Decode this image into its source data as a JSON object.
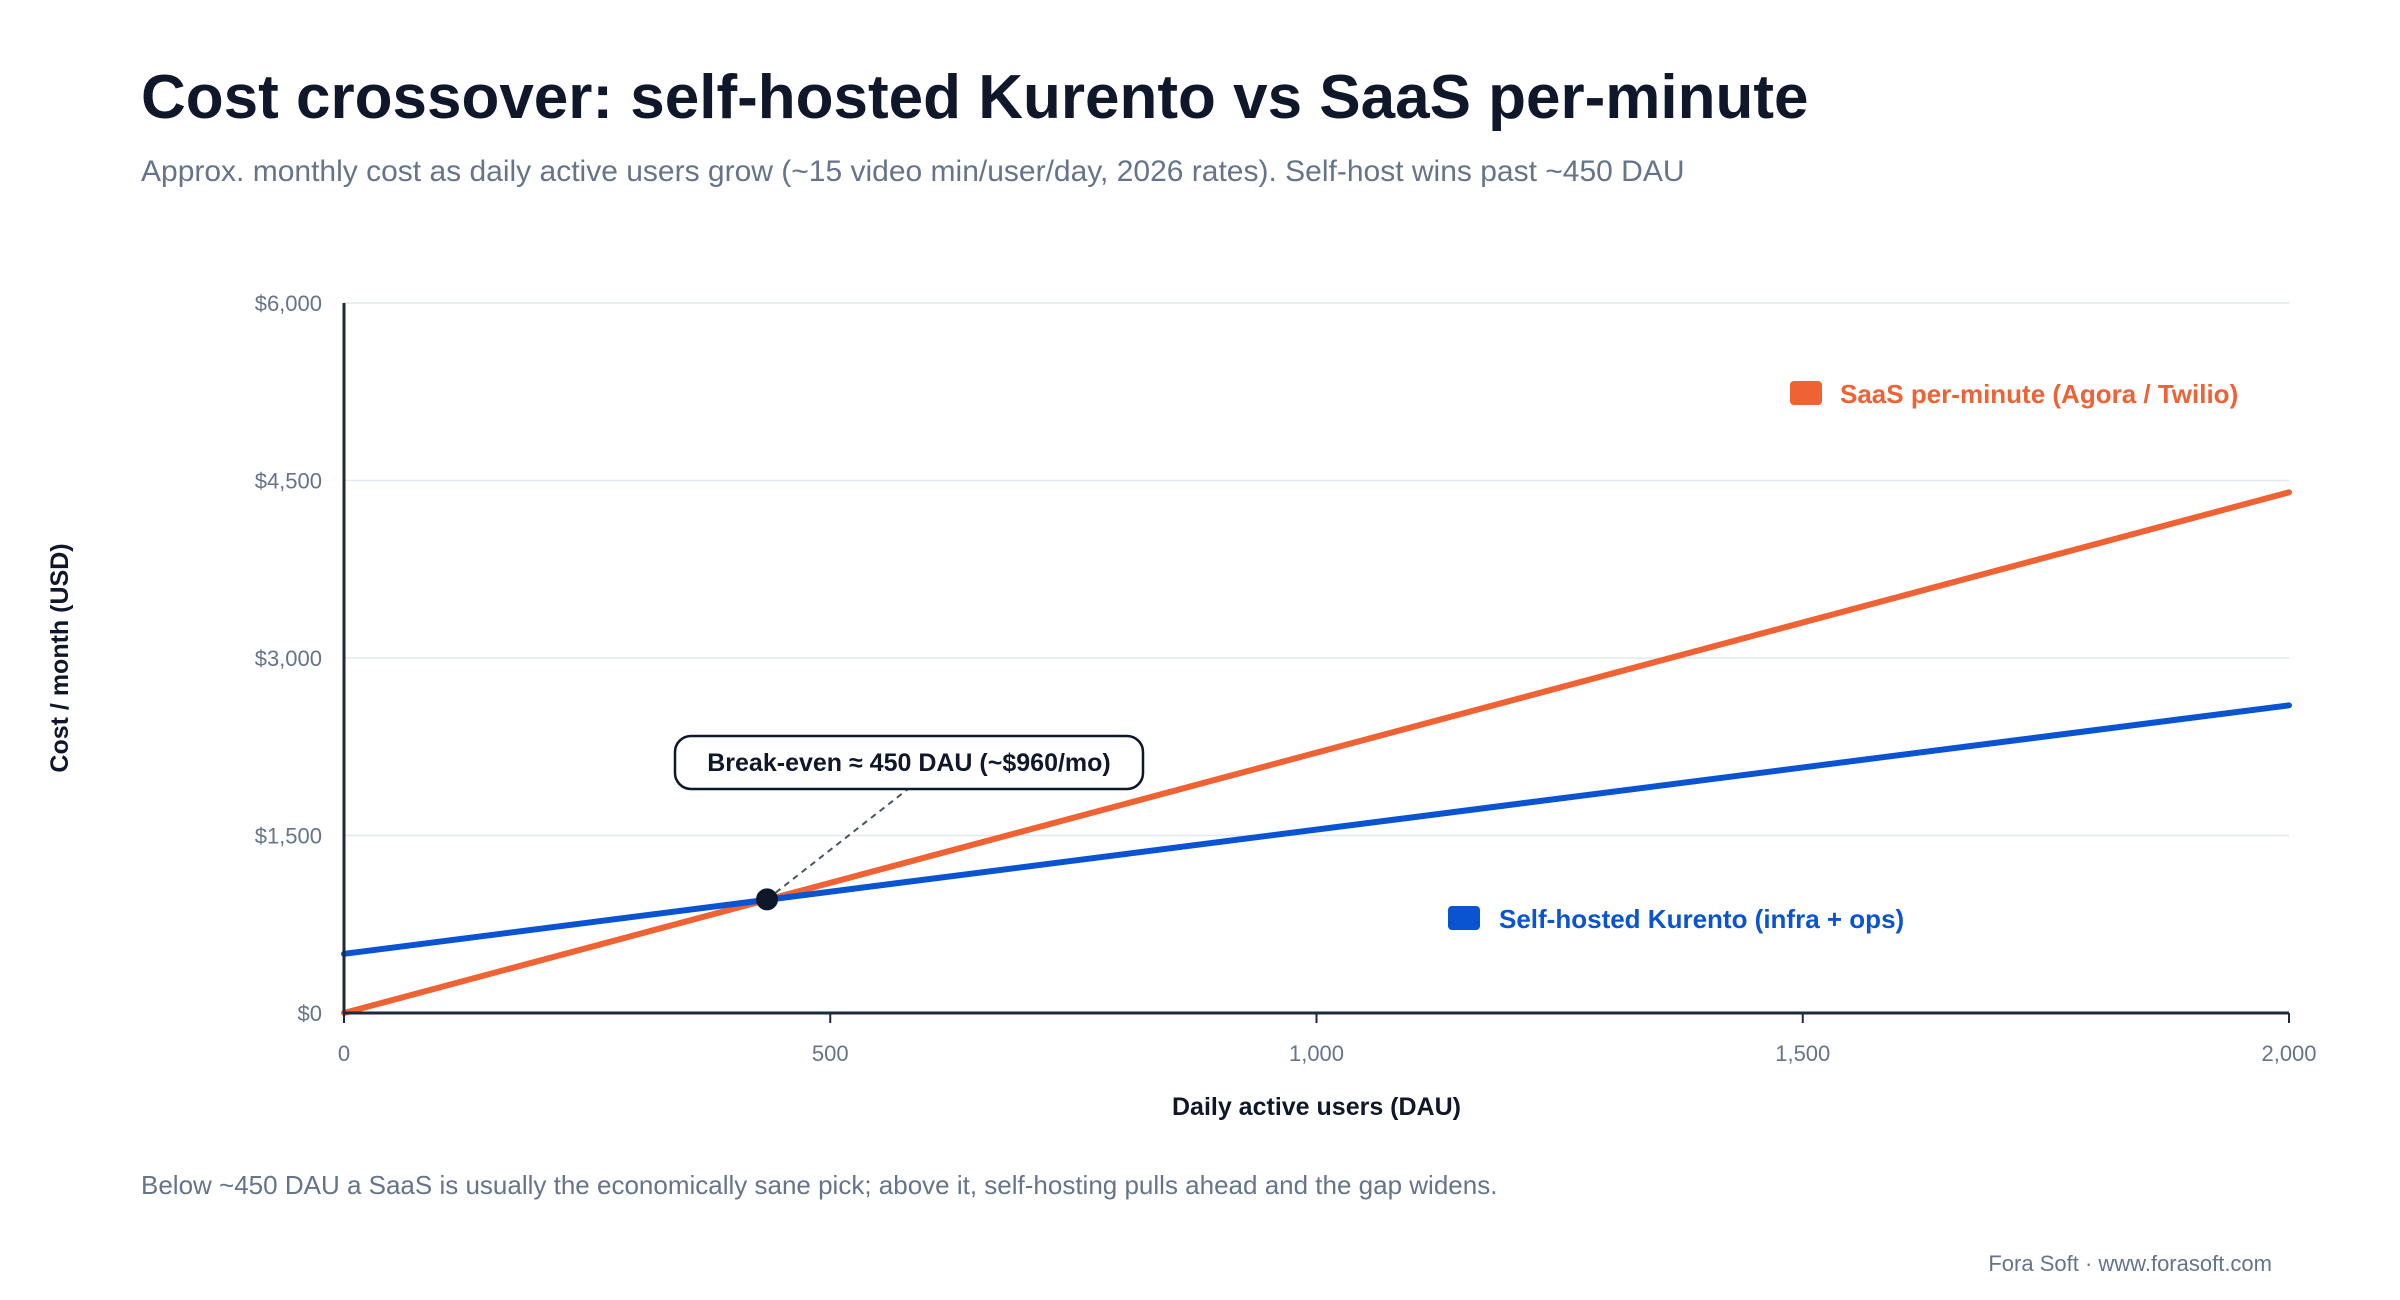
{
  "chart_data": {
    "type": "line",
    "title": "Cost crossover: self-hosted Kurento vs SaaS per-minute",
    "subtitle": "Approx. monthly cost as daily active users grow (~15 video min/user/day, 2026 rates). Self-host wins past ~450 DAU",
    "xlabel": "Daily active users (DAU)",
    "ylabel": "Cost / month (USD)",
    "xlim": [
      0,
      2000
    ],
    "ylim": [
      0,
      6000
    ],
    "x_ticks": [
      0,
      500,
      1000,
      1500,
      2000
    ],
    "x_tick_labels": [
      "0",
      "500",
      "1,000",
      "1,500",
      "2,000"
    ],
    "y_ticks": [
      0,
      1500,
      3000,
      4500,
      6000
    ],
    "y_tick_labels": [
      "$0",
      "$1,500",
      "$3,000",
      "$4,500",
      "$6,000"
    ],
    "grid": "horizontal",
    "series": [
      {
        "name": "SaaS per-minute (Agora / Twilio)",
        "color": "#ee6233",
        "x": [
          0,
          2000
        ],
        "y": [
          0,
          4400
        ]
      },
      {
        "name": "Self-hosted Kurento (infra + ops)",
        "color": "#0b54d1",
        "x": [
          0,
          2000
        ],
        "y": [
          500,
          2600
        ]
      }
    ],
    "annotation": {
      "text": "Break-even ≈ 450 DAU (~$960/mo)",
      "x": 435,
      "y": 960
    }
  },
  "footnote": "Below ~450 DAU a SaaS is usually the economically sane pick; above it, self-hosting pulls ahead and the gap widens.",
  "credit": "Fora Soft · www.forasoft.com"
}
